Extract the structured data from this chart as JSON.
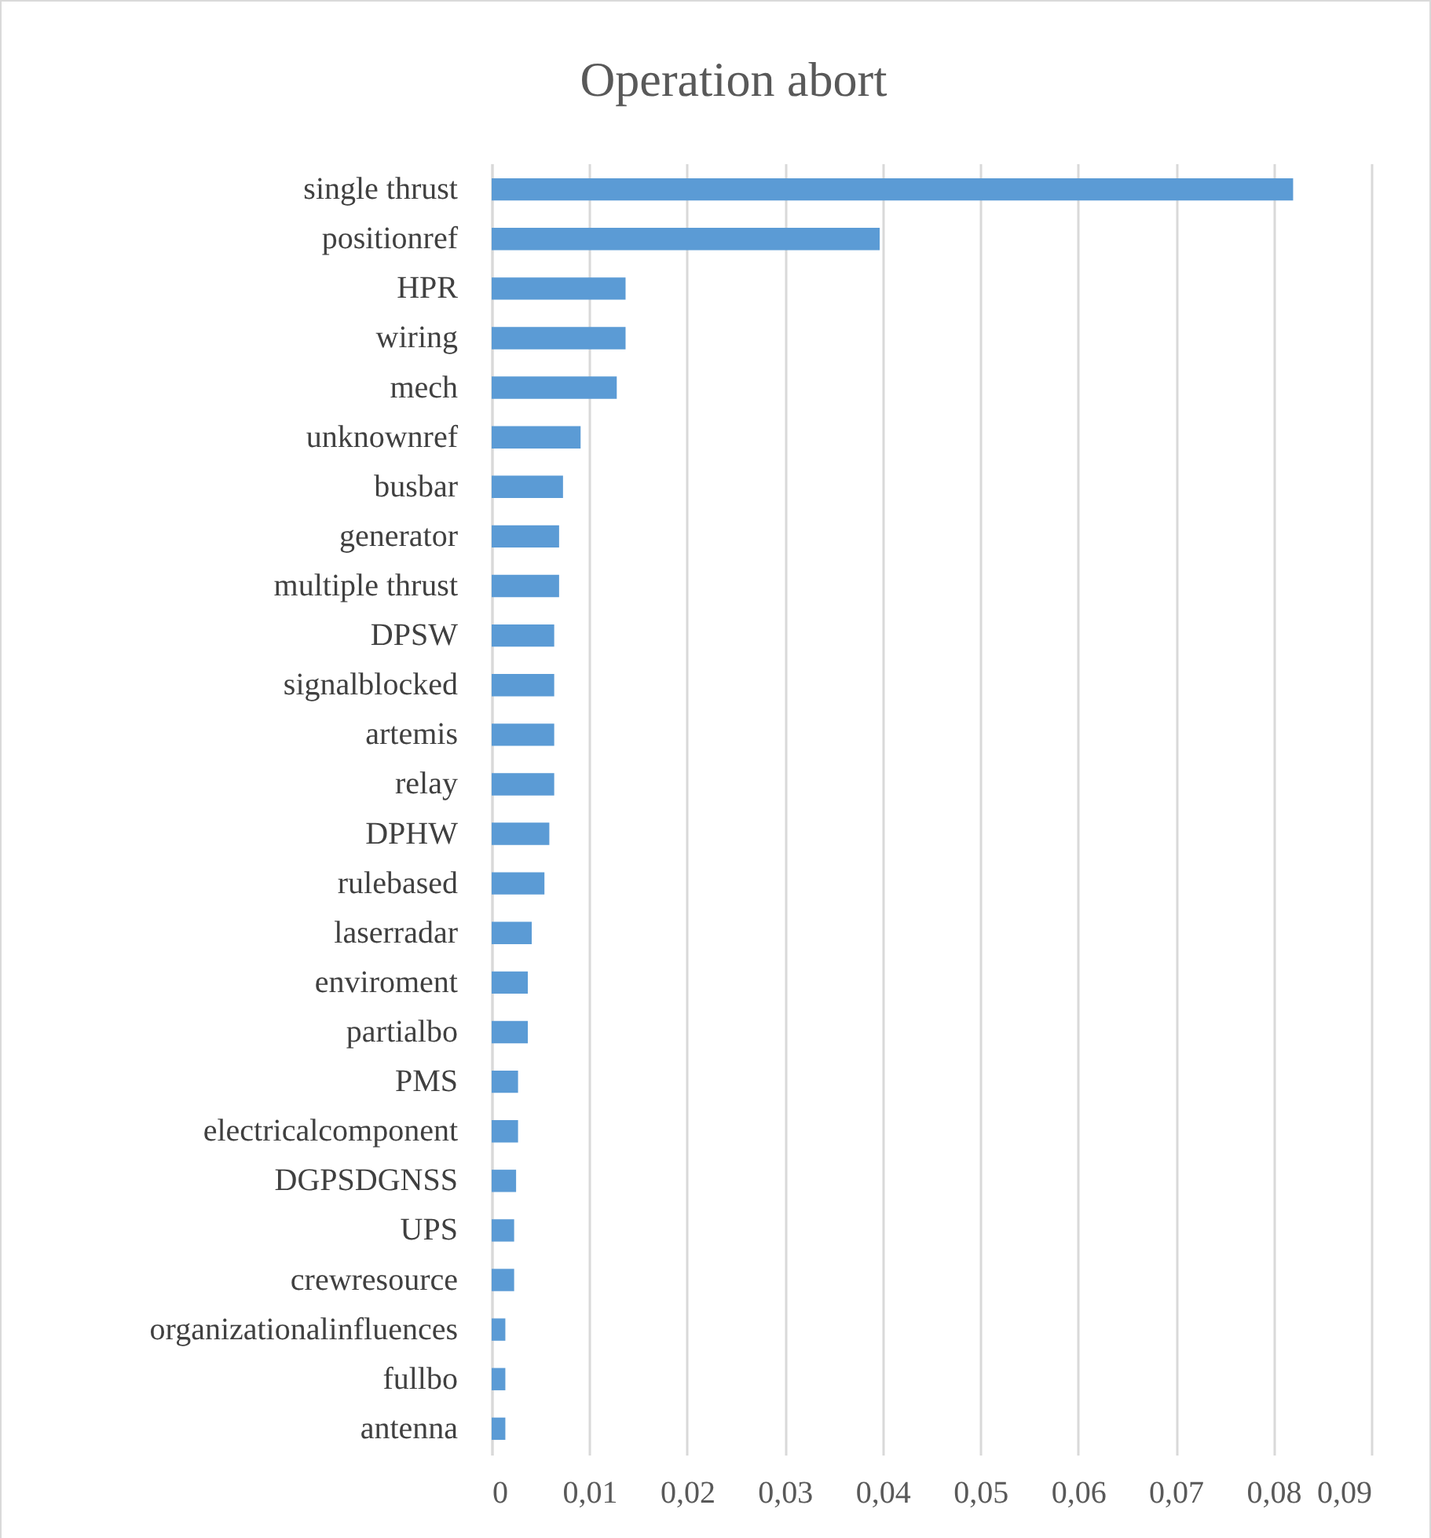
{
  "chart_data": {
    "type": "bar",
    "orientation": "horizontal",
    "title": "Operation abort",
    "categories": [
      "single thrust",
      "positionref",
      "HPR",
      "wiring",
      "mech",
      "unknownref",
      "busbar",
      "generator",
      "multiple thrust",
      "DPSW",
      "signalblocked",
      "artemis",
      "relay",
      "DPHW",
      "rulebased",
      "laserradar",
      "enviroment",
      "partialbo",
      "PMS",
      "electricalcomponent",
      "DGPSDGNSS",
      "UPS",
      "crewresource",
      "organizationalinfluences",
      "fullbo",
      "antenna"
    ],
    "values": [
      0.082,
      0.0397,
      0.0137,
      0.0137,
      0.0128,
      0.0091,
      0.0073,
      0.0069,
      0.0069,
      0.0064,
      0.0064,
      0.0064,
      0.0064,
      0.0059,
      0.0054,
      0.0041,
      0.0037,
      0.0037,
      0.0027,
      0.0027,
      0.0025,
      0.0023,
      0.0023,
      0.0014,
      0.0014,
      0.0014
    ],
    "color": "#5b9bd5",
    "xlim": [
      0,
      0.09
    ],
    "xticks": [
      0,
      {
        "value": 0.01,
        "label": "0,01"
      },
      {
        "value": 0.02,
        "label": "0,02"
      },
      {
        "value": 0.03,
        "label": "0,03"
      },
      {
        "value": 0.04,
        "label": "0,04"
      },
      {
        "value": 0.05,
        "label": "0,05"
      },
      {
        "value": 0.06,
        "label": "0,06"
      },
      {
        "value": 0.07,
        "label": "0,07"
      },
      {
        "value": 0.08,
        "label": "0,08"
      },
      {
        "value": 0.09,
        "label": "0,09"
      }
    ],
    "grid": "x"
  }
}
